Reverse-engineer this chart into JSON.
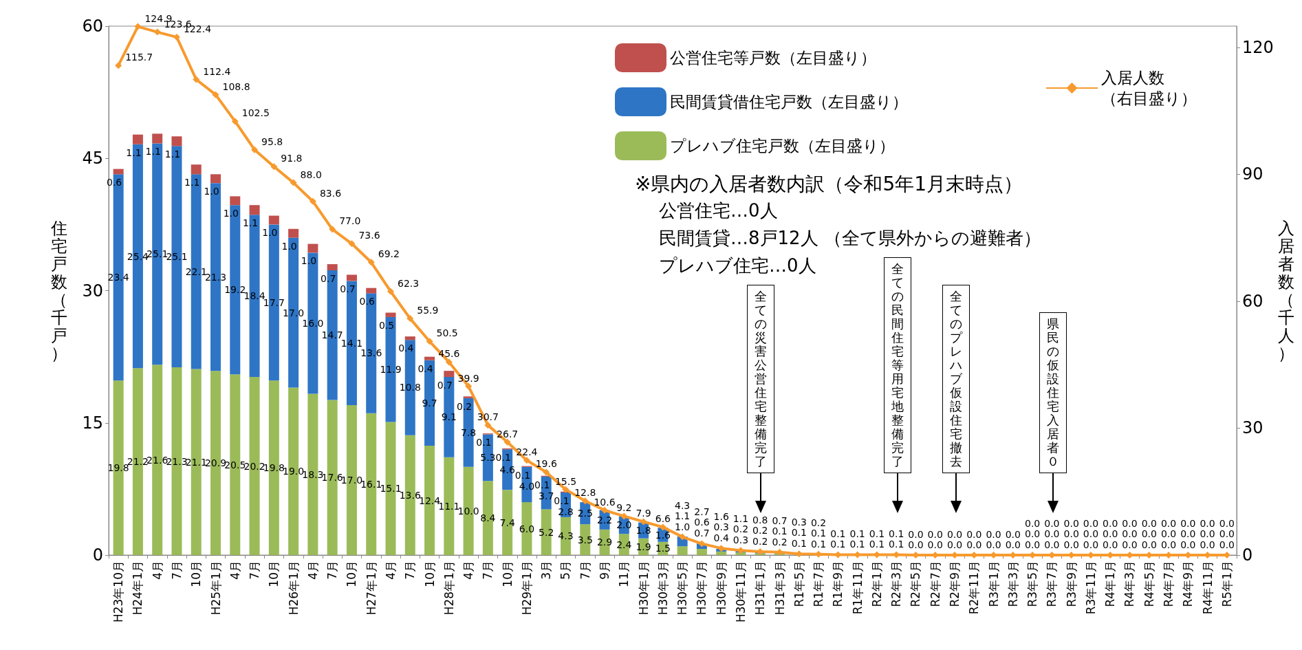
{
  "chart_data": {
    "type": "bar",
    "stacked": true,
    "grid": false,
    "legend": "top right",
    "marker": "diamond",
    "ylabel": "住宅戸数（千戸）",
    "y2label": "入居者数（千人）",
    "ylim": [
      0,
      60
    ],
    "yticks": [
      0,
      15,
      30,
      45,
      60
    ],
    "y2lim": [
      0,
      125
    ],
    "y2ticks": [
      0,
      30,
      60,
      90,
      120
    ],
    "categories": [
      "H23年10月",
      "H24年1月",
      "4月",
      "7月",
      "10月",
      "H25年1月",
      "4月",
      "7月",
      "10月",
      "H26年1月",
      "4月",
      "7月",
      "10月",
      "H27年1月",
      "4月",
      "7月",
      "10月",
      "H28年1月",
      "4月",
      "7月",
      "10月",
      "H29年1月",
      "3月",
      "5月",
      "7月",
      "9月",
      "11月",
      "H30年1月",
      "H30年3月",
      "H30年5月",
      "H30年7月",
      "H30年9月",
      "H30年11月",
      "H31年1月",
      "H31年3月",
      "R1年5月",
      "R1年7月",
      "R1年9月",
      "R1年11月",
      "R2年1月",
      "R2年3月",
      "R2年5月",
      "R2年7月",
      "R2年9月",
      "R2年11月",
      "R3年1月",
      "R3年3月",
      "R3年5月",
      "R3年7月",
      "R3年9月",
      "R3年11月",
      "R4年1月",
      "R4年3月",
      "R4年5月",
      "R4年7月",
      "R4年9月",
      "R4年11月",
      "R5年1月"
    ],
    "series": [
      {
        "name": "プレハブ住宅戸数（左目盛り）",
        "color": "#9bbb59",
        "values": [
          19.8,
          21.2,
          21.6,
          21.3,
          21.1,
          20.9,
          20.5,
          20.2,
          19.8,
          19.0,
          18.3,
          17.6,
          17.0,
          16.1,
          15.1,
          13.6,
          12.4,
          11.1,
          10.0,
          8.4,
          7.4,
          6.0,
          5.2,
          4.3,
          3.5,
          2.9,
          2.4,
          1.9,
          1.5,
          1.0,
          0.7,
          0.4,
          0.3,
          0.2,
          0.2,
          0.1,
          0.1,
          null,
          null,
          null,
          null,
          null,
          null,
          null,
          null,
          null,
          null,
          0,
          0,
          0,
          0,
          0,
          0,
          0,
          0,
          0,
          0,
          0
        ],
        "value_labels": [
          "19.8",
          "21.2",
          "21.6",
          "21.3",
          "21.1",
          "20.9",
          "20.5",
          "20.2",
          "19.8",
          "19.0",
          "18.3",
          "17.6",
          "17.0",
          "16.1",
          "15.1",
          "13.6",
          "12.4",
          "11.1",
          "10.0",
          "8.4",
          "7.4",
          "6.0",
          "5.2",
          "4.3",
          "3.5",
          "2.9",
          "2.4",
          "1.9",
          "1.5",
          "1.0",
          "0.7",
          "0.4",
          "0.3",
          "0.2",
          "0.2",
          "0.1",
          "0.1",
          null,
          null,
          null,
          null,
          null,
          null,
          null,
          null,
          null,
          null,
          "0.0",
          "0.0",
          "0.0",
          "0.0",
          "0.0",
          "0.0",
          "0.0",
          "0.0",
          "0.0",
          "0.0",
          "0.0"
        ]
      },
      {
        "name": "民間賃貸借住宅戸数（左目盛り）",
        "color": "#2e75c6",
        "values": [
          23.4,
          25.4,
          25.1,
          25.1,
          22.1,
          21.3,
          19.2,
          18.4,
          17.7,
          17.0,
          16.0,
          14.7,
          14.1,
          13.6,
          11.9,
          10.8,
          9.7,
          9.1,
          7.8,
          5.3,
          4.6,
          4.0,
          3.7,
          2.8,
          2.5,
          2.2,
          2.0,
          1.8,
          1.6,
          1.1,
          0.6,
          0.3,
          0.2,
          0.2,
          0.1,
          0.1,
          0.1,
          0.1,
          0.1,
          0.1,
          0.1,
          0,
          0,
          0,
          0,
          0,
          0,
          0,
          0,
          0,
          0,
          0,
          0,
          0,
          0,
          0,
          0,
          0
        ],
        "value_labels": [
          "23.4",
          "25.4",
          "25.1",
          "25.1",
          "22.1",
          "21.3",
          "19.2",
          "18.4",
          "17.7",
          "17.0",
          "16.0",
          "14.7",
          "14.1",
          "13.6",
          "11.9",
          "10.8",
          "9.7",
          "9.1",
          "7.8",
          "5.3",
          "4.6",
          "4.0",
          "3.7",
          "2.8",
          "2.5",
          "2.2",
          "2.0",
          "1.8",
          "1.6",
          "1.1",
          "0.6",
          "0.3",
          "0.2",
          "0.2",
          "0.1",
          "0.1",
          "0.1",
          "0.1",
          "0.1",
          "0.1",
          "0.1",
          "0.0",
          "0.0",
          "0.0",
          "0.0",
          "0.0",
          "0.0",
          "0.0",
          "0.0",
          "0.0",
          "0.0",
          "0.0",
          "0.0",
          "0.0",
          "0.0",
          "0.0",
          "0.0",
          "0.0"
        ]
      },
      {
        "name": "公営住宅等戸数（左目盛り）",
        "color": "#c0504d",
        "values": [
          0.6,
          1.1,
          1.1,
          1.1,
          1.1,
          1.0,
          1.0,
          1.1,
          1.0,
          1.0,
          1.0,
          0.7,
          0.7,
          0.6,
          0.5,
          0.4,
          0.4,
          0.7,
          0.2,
          0.1,
          0.1,
          0.1,
          0.1,
          0.1,
          null,
          null,
          null,
          null,
          null,
          null,
          null,
          null,
          null,
          null,
          null,
          null,
          null,
          null,
          null,
          null,
          null,
          null,
          null,
          null,
          null,
          null,
          null,
          null,
          null,
          null,
          null,
          null,
          null,
          null,
          null,
          null,
          null,
          null
        ],
        "value_labels": [
          "0.6",
          "1.1",
          "1.1",
          "1.1",
          "1.1",
          "1.0",
          "1.0",
          "1.1",
          "1.0",
          "1.0",
          "1.0",
          "0.7",
          "0.7",
          "0.6",
          "0.5",
          "0.4",
          "0.4",
          "0.7",
          "0.2",
          "0.1",
          "0.1",
          "0.1",
          "0.1",
          "0.1",
          null,
          null,
          null,
          null,
          null,
          null,
          null,
          null,
          null,
          null,
          null,
          null,
          null,
          null,
          null,
          null,
          null,
          null,
          null,
          null,
          null,
          null,
          null,
          null,
          null,
          null,
          null,
          null,
          null,
          null,
          null,
          null,
          null,
          null
        ]
      },
      {
        "name": "入居人数（右目盛り）",
        "type": "line",
        "axis": "y2",
        "color": "#f79a2e",
        "values": [
          115.7,
          124.9,
          123.6,
          122.4,
          112.4,
          108.8,
          102.5,
          95.8,
          91.8,
          88.0,
          83.6,
          77.0,
          73.6,
          69.2,
          62.3,
          55.9,
          50.5,
          45.6,
          39.9,
          30.7,
          26.7,
          22.4,
          19.6,
          15.5,
          12.8,
          10.6,
          9.2,
          7.9,
          6.6,
          4.3,
          2.7,
          1.6,
          1.1,
          0.8,
          0.7,
          0.3,
          0.2,
          0.1,
          0.1,
          0.1,
          0.1,
          0,
          0,
          0,
          0,
          0,
          0,
          0,
          0,
          0,
          0,
          0,
          0,
          0,
          0,
          0,
          0,
          0
        ],
        "value_labels": [
          "115.7",
          "124.9",
          "123.6",
          "122.4",
          "112.4",
          "108.8",
          "102.5",
          "95.8",
          "91.8",
          "88.0",
          "83.6",
          "77.0",
          "73.6",
          "69.2",
          "62.3",
          "55.9",
          "50.5",
          "45.6",
          "39.9",
          "30.7",
          "26.7",
          "22.4",
          "19.6",
          "15.5",
          "12.8",
          "10.6",
          "9.2",
          "7.9",
          "6.6",
          "4.3",
          "2.7",
          "1.6",
          "1.1",
          "0.8",
          "0.7",
          "0.3",
          "0.2",
          "0.1",
          "0.1",
          "0.1",
          "0.1",
          "0.0",
          "0.0",
          "0.0",
          "0.0",
          "0.0",
          "0.0",
          "0.0",
          "0.0",
          "0.0",
          "0.0",
          "0.0",
          "0.0",
          "0.0",
          "0.0",
          "0.0",
          "0.0",
          "0.0"
        ]
      }
    ],
    "annotations": [
      "※県内の入居者数内訳（令和5年1月末時点）",
      "公営住宅…0人",
      "民間賃貸…8戸12人 （全て県外からの避難者）",
      "プレハブ住宅…0人",
      "全ての災害公営住宅整備完了",
      "全ての民間住宅等用宅地整備完了",
      "全てのプレハブ仮設住宅撤去",
      "県民の仮設住宅入居者０"
    ]
  }
}
